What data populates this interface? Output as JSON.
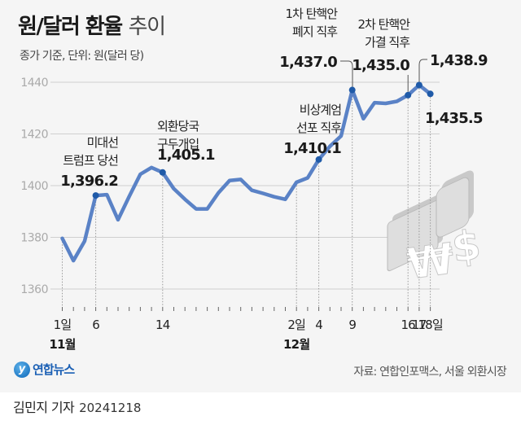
{
  "header": {
    "title_bold": "원/달러 환율",
    "title_light": "추이",
    "subtitle": "종가 기준, 단위: 원(달러 당)"
  },
  "footer": {
    "logo_text": "연합뉴스",
    "source": "자료: 연합인포맥스, 서울 외환시장",
    "reporter": "김민지 기자",
    "date": "20241218"
  },
  "colors": {
    "line": "#5a82c6",
    "marker": "#1f5aa8",
    "grid": "#cfcfcf",
    "axis_text": "#aaaaaa",
    "background": "#f5f5f5"
  },
  "chart_data": {
    "type": "line",
    "title": "원/달러 환율 추이",
    "subtitle": "종가 기준, 단위: 원(달러 당)",
    "xlabel": "",
    "ylabel": "원(달러 당)",
    "ylim": [
      1360,
      1440
    ],
    "yticks": [
      1360,
      1380,
      1400,
      1420,
      1440
    ],
    "grid": true,
    "x": [
      "11/1",
      "11/4",
      "11/5",
      "11/6",
      "11/7",
      "11/8",
      "11/11",
      "11/12",
      "11/13",
      "11/14",
      "11/15",
      "11/18",
      "11/19",
      "11/20",
      "11/21",
      "11/22",
      "11/25",
      "11/26",
      "11/27",
      "11/28",
      "11/29",
      "12/2",
      "12/3",
      "12/4",
      "12/5",
      "12/6",
      "12/9",
      "12/10",
      "12/11",
      "12/12",
      "12/13",
      "12/16",
      "12/17",
      "12/18"
    ],
    "values": [
      1379.6,
      1371.0,
      1378.5,
      1396.2,
      1396.5,
      1386.8,
      1395.8,
      1404.4,
      1407.0,
      1405.1,
      1398.8,
      1394.7,
      1391.0,
      1391.0,
      1397.2,
      1402.0,
      1402.4,
      1398.2,
      1397.0,
      1395.7,
      1394.7,
      1401.3,
      1403.0,
      1410.1,
      1415.2,
      1419.2,
      1437.0,
      1425.9,
      1432.1,
      1431.8,
      1432.6,
      1435.0,
      1438.9,
      1435.5
    ],
    "x_tick_labels": [
      {
        "index": 0,
        "label": "1일"
      },
      {
        "index": 3,
        "label": "6"
      },
      {
        "index": 9,
        "label": "14"
      },
      {
        "index": 21,
        "label": "2일"
      },
      {
        "index": 23,
        "label": "4"
      },
      {
        "index": 26,
        "label": "9"
      },
      {
        "index": 31,
        "label": "16"
      },
      {
        "index": 32,
        "label": "17"
      },
      {
        "index": 33,
        "label": "18일"
      }
    ],
    "month_labels": [
      {
        "index": 0,
        "label": "11월"
      },
      {
        "index": 21,
        "label": "12월"
      }
    ],
    "annotations": [
      {
        "index": 3,
        "lines": [
          "미대선",
          "트럼프 당선"
        ],
        "value_label": "1,396.2"
      },
      {
        "index": 9,
        "lines": [
          "외환당국",
          "구두개입"
        ],
        "value_label": "1,405.1"
      },
      {
        "index": 23,
        "lines": [
          "비상계엄",
          "선포 직후"
        ],
        "value_label": "1,410.1"
      },
      {
        "index": 26,
        "lines": [
          "1차 탄핵안",
          "폐지 직후"
        ],
        "value_label": "1,437.0"
      },
      {
        "index": 31,
        "lines": [
          "2차 탄핵안",
          "가결 직후"
        ],
        "value_label": "1,435.0"
      },
      {
        "index": 32,
        "lines": [],
        "value_label": "1,438.9"
      },
      {
        "index": 33,
        "lines": [],
        "value_label": "1,435.5"
      }
    ],
    "legend": null
  }
}
